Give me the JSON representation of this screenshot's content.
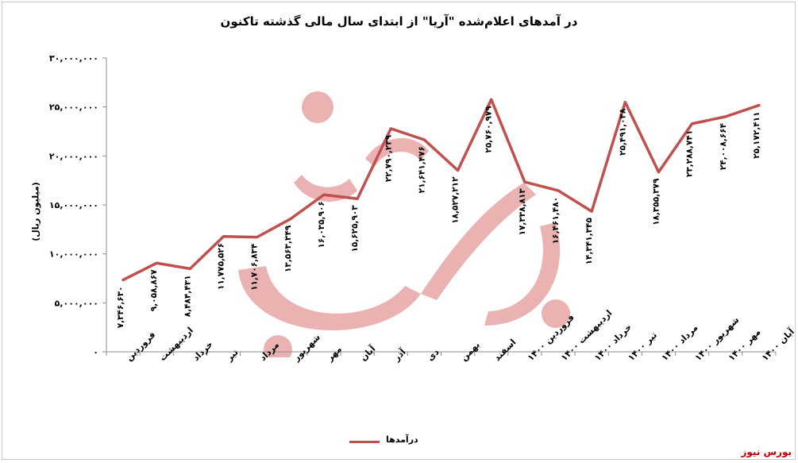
{
  "chart_data": {
    "type": "line",
    "title": "در آمدهای اعلام‌شده \"آریا\" از ابتدای سال مالی گذشته تاکنون",
    "ylabel": "(میلیون ریال)",
    "xlabel": "",
    "ylim": [
      0,
      30000000
    ],
    "yticks": [
      0,
      5000000,
      10000000,
      15000000,
      20000000,
      25000000,
      30000000
    ],
    "ytick_labels": [
      "۰",
      "۵,۰۰۰,۰۰۰",
      "۱۰,۰۰۰,۰۰۰",
      "۱۵,۰۰۰,۰۰۰",
      "۲۰,۰۰۰,۰۰۰",
      "۲۵,۰۰۰,۰۰۰",
      "۳۰,۰۰۰,۰۰۰"
    ],
    "grid": false,
    "legend": "bottom",
    "categories": [
      "فروردین",
      "اردیبهشت",
      "خرداد",
      "تیر",
      "مرداد",
      "شهریور",
      "مهر",
      "آبان",
      "آذر",
      "دی",
      "بهمن",
      "اسفند",
      "فروردین ۱۴۰۰",
      "اردیبهشت ۱۴۰۰",
      "خرداد ۱۴۰۰",
      "تیر ۱۴۰۰",
      "مرداد ۱۴۰۰",
      "شهریور ۱۴۰۰",
      "مهر ۱۴۰۰",
      "آبان ۱۴۰۰"
    ],
    "series": [
      {
        "name": "درآمدها",
        "color": "#c0504d",
        "values": [
          7346630,
          9058867,
          8484431,
          11775526,
          11706834,
          13563349,
          16035906,
          15625903,
          22790239,
          21641476,
          18527212,
          25760979,
          17338813,
          16461480,
          14341345,
          25491048,
          18355379,
          23288741,
          24008664,
          25172411
        ],
        "labels": [
          "۷,۳۴۶,۶۳۰",
          "۹,۰۵۸,۸۶۷",
          "۸,۴۸۴,۴۳۱",
          "۱۱,۷۷۵,۵۲۶",
          "۱۱,۷۰۶,۸۳۴",
          "۱۳,۵۶۳,۳۴۹",
          "۱۶,۰۳۵,۹۰۶",
          "۱۵,۶۲۵,۹۰۳",
          "۲۲,۷۹۰,۲۳۹",
          "۲۱,۶۴۱,۴۷۶",
          "۱۸,۵۲۷,۲۱۲",
          "۲۵,۷۶۰,۹۷۹",
          "۱۷,۳۳۸,۸۱۳",
          "۱۶,۴۶۱,۴۸۰",
          "۱۴,۳۴۱,۳۴۵",
          "۲۵,۴۹۱,۰۴۸",
          "۱۸,۳۵۵,۳۷۹",
          "۲۳,۲۸۸,۷۴۱",
          "۲۴,۰۰۸,۶۶۴",
          "۲۵,۱۷۲,۴۱۱"
        ]
      }
    ]
  },
  "legend": {
    "label": "درآمدها"
  },
  "brand": "بورس نیوز",
  "watermark": "بورس نیوز"
}
